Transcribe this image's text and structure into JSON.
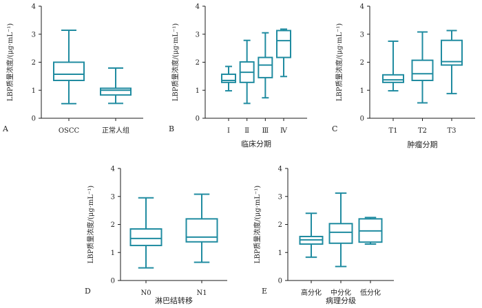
{
  "colors": {
    "box": "#1f8ba0",
    "axis": "#1a1a1a",
    "text": "#222222"
  },
  "chart_data": [
    {
      "type": "box",
      "panel": "A",
      "ylabel": "LBP质量浓度/(μg·mL⁻¹)",
      "xlabel": "",
      "ylim": [
        0,
        4
      ],
      "yticks": [
        0,
        1,
        2,
        3,
        4
      ],
      "categories": [
        "OSCC",
        "正常人组"
      ],
      "boxes": [
        {
          "min": 0.52,
          "q1": 1.35,
          "median": 1.57,
          "q3": 2.0,
          "max": 3.14
        },
        {
          "min": 0.53,
          "q1": 0.83,
          "median": 1.0,
          "q3": 1.07,
          "max": 1.79
        }
      ]
    },
    {
      "type": "box",
      "panel": "B",
      "ylabel": "LBP质量浓度/(μg·mL⁻¹)",
      "xlabel": "临床分期",
      "ylim": [
        0,
        4
      ],
      "yticks": [
        0,
        1,
        2,
        3,
        4
      ],
      "categories": [
        "Ⅰ",
        "Ⅱ",
        "Ⅲ",
        "Ⅳ"
      ],
      "boxes": [
        {
          "min": 0.98,
          "q1": 1.28,
          "median": 1.35,
          "q3": 1.57,
          "max": 1.85
        },
        {
          "min": 0.53,
          "q1": 1.28,
          "median": 1.64,
          "q3": 2.01,
          "max": 2.78
        },
        {
          "min": 0.73,
          "q1": 1.45,
          "median": 1.9,
          "q3": 2.17,
          "max": 3.05
        },
        {
          "min": 1.49,
          "q1": 2.17,
          "median": 2.77,
          "q3": 3.13,
          "max": 3.18
        }
      ]
    },
    {
      "type": "box",
      "panel": "C",
      "ylabel": "LBP质量浓度/(μg·mL⁻¹)",
      "xlabel": "肿瘤分期",
      "ylim": [
        0,
        4
      ],
      "yticks": [
        0,
        1,
        2,
        3,
        4
      ],
      "categories": [
        "T1",
        "T2",
        "T3"
      ],
      "boxes": [
        {
          "min": 0.98,
          "q1": 1.28,
          "median": 1.37,
          "q3": 1.55,
          "max": 2.75
        },
        {
          "min": 0.55,
          "q1": 1.35,
          "median": 1.59,
          "q3": 2.07,
          "max": 3.08
        },
        {
          "min": 0.88,
          "q1": 1.9,
          "median": 2.02,
          "q3": 2.78,
          "max": 3.13
        }
      ]
    },
    {
      "type": "box",
      "panel": "D",
      "ylabel": "LBP质量浓度/(μg·mL⁻¹)",
      "xlabel": "淋巴结转移",
      "ylim": [
        0,
        4
      ],
      "yticks": [
        0,
        1,
        2,
        3,
        4
      ],
      "categories": [
        "N0",
        "N1"
      ],
      "boxes": [
        {
          "min": 0.45,
          "q1": 1.25,
          "median": 1.5,
          "q3": 1.84,
          "max": 2.95
        },
        {
          "min": 0.65,
          "q1": 1.38,
          "median": 1.55,
          "q3": 2.2,
          "max": 3.08
        }
      ]
    },
    {
      "type": "box",
      "panel": "E",
      "ylabel": "LBP质量浓度/(μg·mL⁻¹)",
      "xlabel": "病理分级",
      "ylim": [
        0,
        4
      ],
      "yticks": [
        0,
        1,
        2,
        3,
        4
      ],
      "categories": [
        "高分化",
        "中分化",
        "低分化"
      ],
      "boxes": [
        {
          "min": 0.83,
          "q1": 1.3,
          "median": 1.45,
          "q3": 1.57,
          "max": 2.4
        },
        {
          "min": 0.5,
          "q1": 1.33,
          "median": 1.72,
          "q3": 2.03,
          "max": 3.12
        },
        {
          "min": 1.3,
          "q1": 1.37,
          "median": 1.77,
          "q3": 2.2,
          "max": 2.25
        }
      ]
    }
  ]
}
